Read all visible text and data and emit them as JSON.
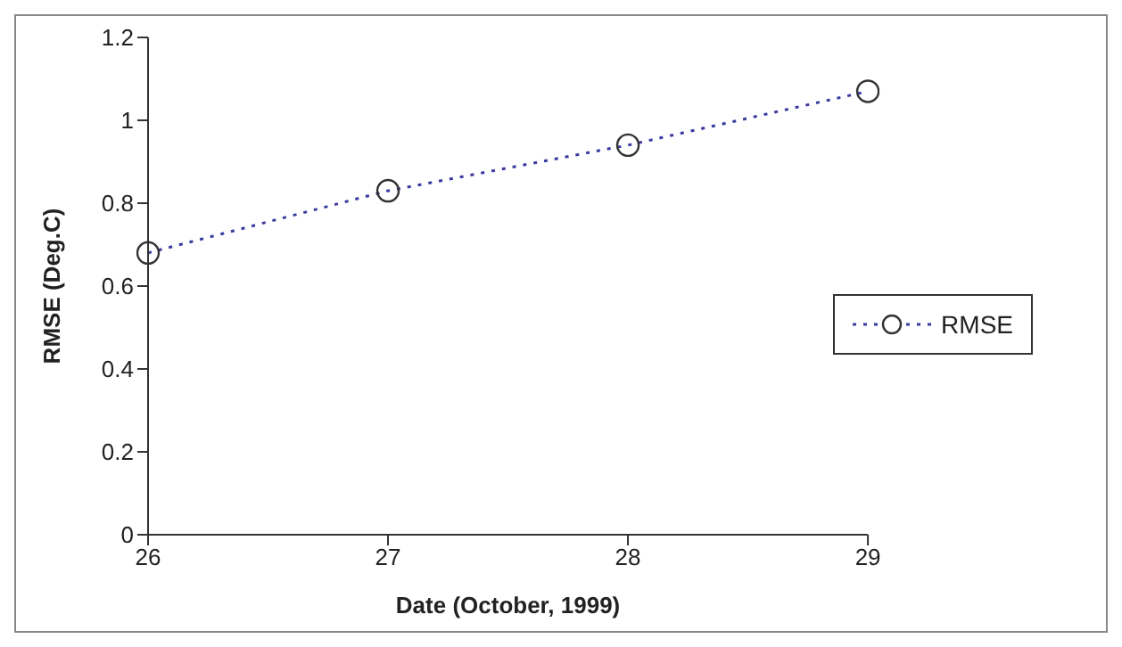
{
  "chart_data": {
    "type": "line",
    "xlabel": "Date (October, 1999)",
    "ylabel": "RMSE  (Deg.C)",
    "x": [
      26,
      27,
      28,
      29
    ],
    "series": [
      {
        "name": "RMSE",
        "color": "#3a3aa0",
        "values": [
          0.68,
          0.83,
          0.94,
          1.07
        ]
      }
    ],
    "xlim": [
      26,
      29
    ],
    "xticks": [
      26,
      27,
      28,
      29
    ],
    "ylim": [
      0,
      1.2
    ],
    "yticks": [
      0,
      0.2,
      0.4,
      0.6,
      0.8,
      1,
      1.2
    ],
    "grid": false,
    "legend": "right",
    "marker": "circle",
    "line_style": "dotted"
  }
}
